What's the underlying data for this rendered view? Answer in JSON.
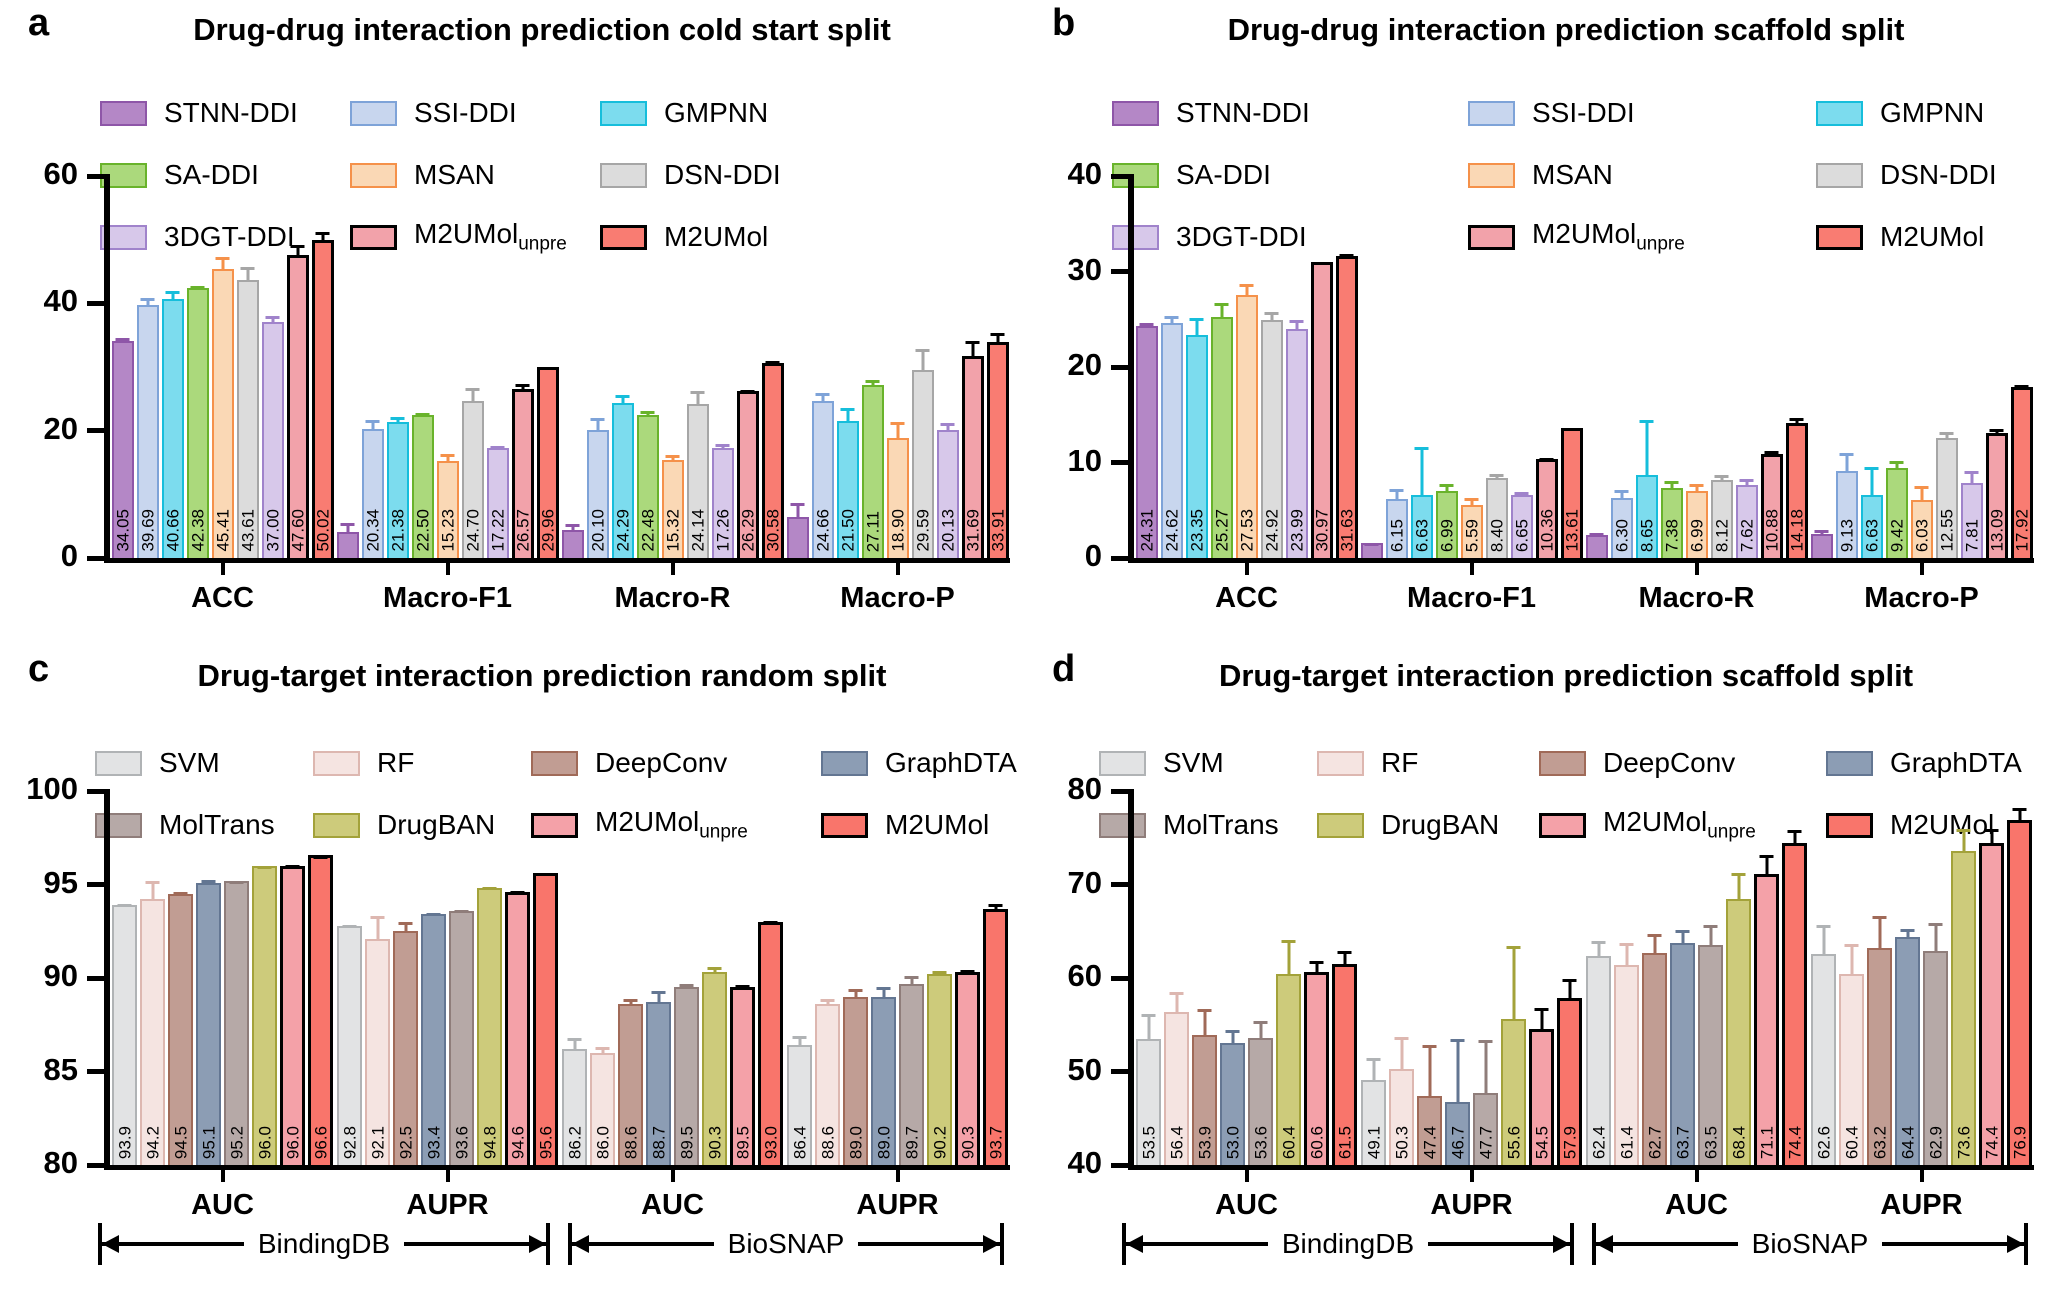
{
  "chart_data": [
    {
      "key": "a",
      "letter": "a",
      "title": "Drug-drug interaction prediction cold start split",
      "type": "bar",
      "ylim": [
        0,
        60
      ],
      "yticks": [
        0,
        20,
        40,
        60
      ],
      "groups": [
        "ACC",
        "Macro-F1",
        "Macro-R",
        "Macro-P"
      ],
      "legend_order": [
        0,
        3,
        6,
        1,
        4,
        7,
        2,
        5,
        8
      ],
      "datasets": null,
      "series": [
        {
          "name": "STNN-DDI",
          "sub": null,
          "fill": "#b487c6",
          "border": "#8e56a8",
          "values": [
            34.05,
            4.1,
            4.4,
            6.5
          ],
          "errors": [
            0.9,
            1.7,
            1.2,
            2.5
          ],
          "labels": [
            "34.05",
            null,
            null,
            null
          ]
        },
        {
          "name": "SSI-DDI",
          "sub": null,
          "fill": "#c8d6ee",
          "border": "#7ea3d8",
          "values": [
            39.69,
            20.34,
            20.1,
            24.66
          ],
          "errors": [
            1.4,
            1.6,
            2.2,
            1.5
          ],
          "labels": [
            "39.69",
            "20.34",
            "20.10",
            "24.66"
          ]
        },
        {
          "name": "GMPNN",
          "sub": null,
          "fill": "#7cdcee",
          "border": "#16bedb",
          "values": [
            40.66,
            21.38,
            24.29,
            21.5
          ],
          "errors": [
            1.6,
            1.1,
            1.6,
            2.4
          ],
          "labels": [
            "40.66",
            "21.38",
            "24.29",
            "21.50"
          ]
        },
        {
          "name": "SA-DDI",
          "sub": null,
          "fill": "#abd97c",
          "border": "#69b32b",
          "values": [
            42.38,
            22.5,
            22.48,
            27.11
          ],
          "errors": [
            0.7,
            0.6,
            1.0,
            1.1
          ],
          "labels": [
            "42.38",
            "22.50",
            "22.48",
            "27.11"
          ]
        },
        {
          "name": "MSAN",
          "sub": null,
          "fill": "#fad8b5",
          "border": "#f5914a",
          "values": [
            45.41,
            15.23,
            15.32,
            18.9
          ],
          "errors": [
            2.2,
            1.5,
            1.2,
            2.7
          ],
          "labels": [
            "45.41",
            "15.23",
            "15.32",
            "18.90"
          ]
        },
        {
          "name": "DSN-DDI",
          "sub": null,
          "fill": "#dcdcdc",
          "border": "#a6a6a6",
          "values": [
            43.61,
            24.7,
            24.14,
            29.59
          ],
          "errors": [
            2.4,
            2.3,
            2.4,
            3.6
          ],
          "labels": [
            "43.61",
            "24.70",
            "24.14",
            "29.59"
          ]
        },
        {
          "name": "3DGT-DDI",
          "sub": null,
          "fill": "#d7c8ea",
          "border": "#a083cb",
          "values": [
            37.0,
            17.22,
            17.26,
            20.13
          ],
          "errors": [
            1.3,
            0.7,
            0.9,
            1.4
          ],
          "labels": [
            "37.00",
            "17.22",
            "17.26",
            "20.13"
          ]
        },
        {
          "name": "M2UMol",
          "sub": "unpre",
          "fill": "#f2a2aa",
          "border": "#000000",
          "values": [
            47.6,
            26.57,
            26.29,
            31.69
          ],
          "errors": [
            2.1,
            1.3,
            0.6,
            2.9
          ],
          "labels": [
            "47.60",
            "26.57",
            "26.29",
            "31.69"
          ]
        },
        {
          "name": "M2UMol",
          "sub": null,
          "fill": "#f97c72",
          "border": "#000000",
          "values": [
            50.02,
            29.96,
            30.58,
            33.91
          ],
          "errors": [
            1.7,
            0.5,
            0.9,
            1.9
          ],
          "labels": [
            "50.02",
            "29.96",
            "30.58",
            "33.91"
          ]
        }
      ]
    },
    {
      "key": "b",
      "letter": "b",
      "title": "Drug-drug interaction prediction scaffold split",
      "type": "bar",
      "ylim": [
        0,
        40
      ],
      "yticks": [
        0,
        10,
        20,
        30,
        40
      ],
      "groups": [
        "ACC",
        "Macro-F1",
        "Macro-R",
        "Macro-P"
      ],
      "legend_order": [
        0,
        3,
        6,
        1,
        4,
        7,
        2,
        5,
        8
      ],
      "datasets": null,
      "series": [
        {
          "name": "STNN-DDI",
          "sub": null,
          "fill": "#b487c6",
          "border": "#8e56a8",
          "values": [
            24.31,
            1.6,
            2.4,
            2.5
          ],
          "errors": [
            0.5,
            0.2,
            0.4,
            0.6
          ],
          "labels": [
            "24.31",
            null,
            null,
            null
          ]
        },
        {
          "name": "SSI-DDI",
          "sub": null,
          "fill": "#c8d6ee",
          "border": "#7ea3d8",
          "values": [
            24.62,
            6.15,
            6.3,
            9.13
          ],
          "errors": [
            0.9,
            1.3,
            1.0,
            2.1
          ],
          "labels": [
            "24.62",
            "6.15",
            "6.30",
            "9.13"
          ]
        },
        {
          "name": "GMPNN",
          "sub": null,
          "fill": "#7cdcee",
          "border": "#16bedb",
          "values": [
            23.35,
            6.63,
            8.65,
            6.63
          ],
          "errors": [
            2.0,
            5.2,
            6.0,
            3.1
          ],
          "labels": [
            "23.35",
            "6.63",
            "8.65",
            "6.63"
          ]
        },
        {
          "name": "SA-DDI",
          "sub": null,
          "fill": "#abd97c",
          "border": "#69b32b",
          "values": [
            25.27,
            6.99,
            7.38,
            9.42
          ],
          "errors": [
            1.6,
            1.0,
            0.9,
            0.9
          ],
          "labels": [
            "25.27",
            "6.99",
            "7.38",
            "9.42"
          ]
        },
        {
          "name": "MSAN",
          "sub": null,
          "fill": "#fad8b5",
          "border": "#f5914a",
          "values": [
            27.53,
            5.59,
            6.99,
            6.03
          ],
          "errors": [
            1.4,
            0.9,
            1.0,
            1.7
          ],
          "labels": [
            "27.53",
            "5.59",
            "6.99",
            "6.03"
          ]
        },
        {
          "name": "DSN-DDI",
          "sub": null,
          "fill": "#dcdcdc",
          "border": "#a6a6a6",
          "values": [
            24.92,
            8.4,
            8.12,
            12.55
          ],
          "errors": [
            1.0,
            0.6,
            0.8,
            0.9
          ],
          "labels": [
            "24.92",
            "8.40",
            "8.12",
            "12.55"
          ]
        },
        {
          "name": "3DGT-DDI",
          "sub": null,
          "fill": "#d7c8ea",
          "border": "#a083cb",
          "values": [
            23.99,
            6.65,
            7.62,
            7.81
          ],
          "errors": [
            1.1,
            0.5,
            0.9,
            1.5
          ],
          "labels": [
            "23.99",
            "6.65",
            "7.62",
            "7.81"
          ]
        },
        {
          "name": "M2UMol",
          "sub": "unpre",
          "fill": "#f2a2aa",
          "border": "#000000",
          "values": [
            30.97,
            10.36,
            10.88,
            13.09
          ],
          "errors": [
            0.3,
            0.4,
            0.6,
            0.7
          ],
          "labels": [
            "30.97",
            "10.36",
            "10.88",
            "13.09"
          ]
        },
        {
          "name": "M2UMol",
          "sub": null,
          "fill": "#f97c72",
          "border": "#000000",
          "values": [
            31.63,
            13.61,
            14.18,
            17.92
          ],
          "errors": [
            0.5,
            0.3,
            0.8,
            0.5
          ],
          "labels": [
            "31.63",
            "13.61",
            "14.18",
            "17.92"
          ]
        }
      ]
    },
    {
      "key": "c",
      "letter": "c",
      "title": "Drug-target interaction prediction random split",
      "type": "bar",
      "ylim": [
        80,
        100
      ],
      "yticks": [
        80,
        85,
        90,
        95,
        100
      ],
      "groups": [
        "AUC",
        "AUPR",
        "AUC",
        "AUPR"
      ],
      "legend_order": [
        0,
        4,
        1,
        5,
        2,
        6,
        3,
        7
      ],
      "datasets": [
        {
          "label": "BindingDB",
          "groups": [
            0,
            1
          ]
        },
        {
          "label": "BioSNAP",
          "groups": [
            2,
            3
          ]
        }
      ],
      "series": [
        {
          "name": "SVM",
          "sub": null,
          "fill": "#e2e3e4",
          "border": "#b0b3b5",
          "values": [
            93.9,
            92.8,
            86.2,
            86.4
          ],
          "errors": [
            0.15,
            0.15,
            0.7,
            0.6
          ],
          "labels": [
            "93.9",
            "92.8",
            "86.2",
            "86.4"
          ]
        },
        {
          "name": "RF",
          "sub": null,
          "fill": "#f5e4e1",
          "border": "#ddb7b0",
          "values": [
            94.2,
            92.1,
            86.0,
            88.6
          ],
          "errors": [
            1.1,
            1.3,
            0.4,
            0.4
          ],
          "labels": [
            "94.2",
            "92.1",
            "86.0",
            "88.6"
          ]
        },
        {
          "name": "DeepConv",
          "sub": null,
          "fill": "#c19d93",
          "border": "#a06a58",
          "values": [
            94.5,
            92.5,
            88.6,
            89.0
          ],
          "errors": [
            0.2,
            0.6,
            0.4,
            0.5
          ],
          "labels": [
            "94.5",
            "92.5",
            "88.6",
            "89.0"
          ]
        },
        {
          "name": "GraphDTA",
          "sub": null,
          "fill": "#8c9db4",
          "border": "#637692",
          "values": [
            95.1,
            93.4,
            88.7,
            89.0
          ],
          "errors": [
            0.25,
            0.2,
            0.7,
            0.6
          ],
          "labels": [
            "95.1",
            "93.4",
            "88.7",
            "89.0"
          ]
        },
        {
          "name": "MolTrans",
          "sub": null,
          "fill": "#b6a9a7",
          "border": "#8f7d7a",
          "values": [
            95.2,
            93.6,
            89.5,
            89.7
          ],
          "errors": [
            0.1,
            0.15,
            0.3,
            0.5
          ],
          "labels": [
            "95.2",
            "93.6",
            "89.5",
            "89.7"
          ]
        },
        {
          "name": "DrugBAN",
          "sub": null,
          "fill": "#cdcb7b",
          "border": "#a3a23a",
          "values": [
            96.0,
            94.8,
            90.3,
            90.2
          ],
          "errors": [
            0.1,
            0.2,
            0.4,
            0.3
          ],
          "labels": [
            "96.0",
            "94.8",
            "90.3",
            "90.2"
          ]
        },
        {
          "name": "M2UMol",
          "sub": "unpre",
          "fill": "#f4a1a8",
          "border": "#000000",
          "values": [
            96.0,
            94.6,
            89.5,
            90.3
          ],
          "errors": [
            0.2,
            0.2,
            0.3,
            0.3
          ],
          "labels": [
            "96.0",
            "94.6",
            "89.5",
            "90.3"
          ]
        },
        {
          "name": "M2UMol",
          "sub": null,
          "fill": "#f9756b",
          "border": "#000000",
          "values": [
            96.6,
            95.6,
            93.0,
            93.7
          ],
          "errors": [
            0.1,
            0.2,
            0.2,
            0.4
          ],
          "labels": [
            "96.6",
            "95.6",
            "93.0",
            "93.7"
          ]
        }
      ]
    },
    {
      "key": "d",
      "letter": "d",
      "title": "Drug-target interaction prediction scaffold split",
      "type": "bar",
      "ylim": [
        40,
        80
      ],
      "yticks": [
        40,
        50,
        60,
        70,
        80
      ],
      "groups": [
        "AUC",
        "AUPR",
        "AUC",
        "AUPR"
      ],
      "legend_order": [
        0,
        4,
        1,
        5,
        2,
        6,
        3,
        7
      ],
      "datasets": [
        {
          "label": "BindingDB",
          "groups": [
            0,
            1
          ]
        },
        {
          "label": "BioSNAP",
          "groups": [
            2,
            3
          ]
        }
      ],
      "series": [
        {
          "name": "SVM",
          "sub": null,
          "fill": "#e2e3e4",
          "border": "#b0b3b5",
          "values": [
            53.5,
            49.1,
            62.4,
            62.6
          ],
          "errors": [
            2.9,
            2.6,
            1.8,
            3.3
          ],
          "labels": [
            "53.5",
            "49.1",
            "62.4",
            "62.6"
          ]
        },
        {
          "name": "RF",
          "sub": null,
          "fill": "#f5e4e1",
          "border": "#ddb7b0",
          "values": [
            56.4,
            50.3,
            61.4,
            60.4
          ],
          "errors": [
            2.3,
            3.6,
            2.6,
            3.4
          ],
          "labels": [
            "56.4",
            "50.3",
            "61.4",
            "60.4"
          ]
        },
        {
          "name": "DeepConv",
          "sub": null,
          "fill": "#c19d93",
          "border": "#a06a58",
          "values": [
            53.9,
            47.4,
            62.7,
            63.2
          ],
          "errors": [
            3.0,
            5.6,
            2.2,
            3.6
          ],
          "labels": [
            "53.9",
            "47.4",
            "62.7",
            "63.2"
          ]
        },
        {
          "name": "GraphDTA",
          "sub": null,
          "fill": "#8c9db4",
          "border": "#637692",
          "values": [
            53.0,
            46.7,
            63.7,
            64.4
          ],
          "errors": [
            1.7,
            7.0,
            1.6,
            1.1
          ],
          "labels": [
            "53.0",
            "46.7",
            "63.7",
            "64.4"
          ]
        },
        {
          "name": "MolTrans",
          "sub": null,
          "fill": "#b6a9a7",
          "border": "#8f7d7a",
          "values": [
            53.6,
            47.7,
            63.5,
            62.9
          ],
          "errors": [
            2.0,
            5.9,
            2.4,
            3.2
          ],
          "labels": [
            "53.6",
            "47.7",
            "63.5",
            "62.9"
          ]
        },
        {
          "name": "DrugBAN",
          "sub": null,
          "fill": "#cdcb7b",
          "border": "#a3a23a",
          "values": [
            60.4,
            55.6,
            68.4,
            73.6
          ],
          "errors": [
            3.9,
            8.0,
            3.0,
            2.5
          ],
          "labels": [
            "60.4",
            "55.6",
            "68.4",
            "73.6"
          ]
        },
        {
          "name": "M2UMol",
          "sub": "unpre",
          "fill": "#f4a1a8",
          "border": "#000000",
          "values": [
            60.6,
            54.5,
            71.1,
            74.4
          ],
          "errors": [
            1.5,
            2.6,
            2.4,
            1.9
          ],
          "labels": [
            "60.6",
            "54.5",
            "71.1",
            "74.4"
          ]
        },
        {
          "name": "M2UMol",
          "sub": null,
          "fill": "#f9756b",
          "border": "#000000",
          "values": [
            61.5,
            57.9,
            74.4,
            76.9
          ],
          "errors": [
            1.7,
            2.3,
            1.7,
            1.6
          ],
          "labels": [
            "61.5",
            "57.9",
            "74.4",
            "76.9"
          ]
        }
      ]
    }
  ]
}
